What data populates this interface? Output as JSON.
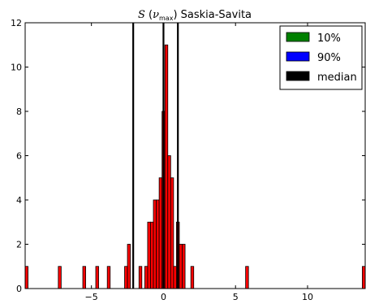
{
  "chart_data": {
    "type": "bar",
    "title": "S (ν_max) Saskia-Savita",
    "xlabel": "",
    "ylabel": "",
    "xlim": [
      -9.6,
      14.0
    ],
    "ylim": [
      0,
      12
    ],
    "xticks": [
      -5,
      0,
      5,
      10
    ],
    "yticks": [
      0,
      2,
      4,
      6,
      8,
      10,
      12
    ],
    "bar_width": 0.2,
    "bars": [
      {
        "x": -9.5,
        "value": 1
      },
      {
        "x": -7.2,
        "value": 1
      },
      {
        "x": -5.5,
        "value": 1
      },
      {
        "x": -4.6,
        "value": 1
      },
      {
        "x": -3.8,
        "value": 1
      },
      {
        "x": -2.6,
        "value": 1
      },
      {
        "x": -2.4,
        "value": 2
      },
      {
        "x": -1.6,
        "value": 1
      },
      {
        "x": -1.2,
        "value": 1
      },
      {
        "x": -1.0,
        "value": 3
      },
      {
        "x": -0.8,
        "value": 3
      },
      {
        "x": -0.6,
        "value": 4
      },
      {
        "x": -0.4,
        "value": 4
      },
      {
        "x": -0.2,
        "value": 5
      },
      {
        "x": 0.0,
        "value": 8
      },
      {
        "x": 0.2,
        "value": 11
      },
      {
        "x": 0.4,
        "value": 6
      },
      {
        "x": 0.6,
        "value": 5
      },
      {
        "x": 0.8,
        "value": 1
      },
      {
        "x": 1.0,
        "value": 3
      },
      {
        "x": 1.2,
        "value": 2
      },
      {
        "x": 1.4,
        "value": 2
      },
      {
        "x": 2.0,
        "value": 1
      },
      {
        "x": 5.8,
        "value": 1
      },
      {
        "x": 13.9,
        "value": 1
      }
    ],
    "vertical_lines": [
      {
        "x": -2.1,
        "label": "10%"
      },
      {
        "x": 1.0,
        "label": "90%"
      },
      {
        "x": 0.0,
        "label": "median"
      }
    ],
    "legend": [
      {
        "label": "10%",
        "color": "#008000"
      },
      {
        "label": "90%",
        "color": "#0000ff"
      },
      {
        "label": "median",
        "color": "#000000"
      }
    ],
    "legend_position": "top-right",
    "bar_color": "#ff0000",
    "grid": false
  }
}
